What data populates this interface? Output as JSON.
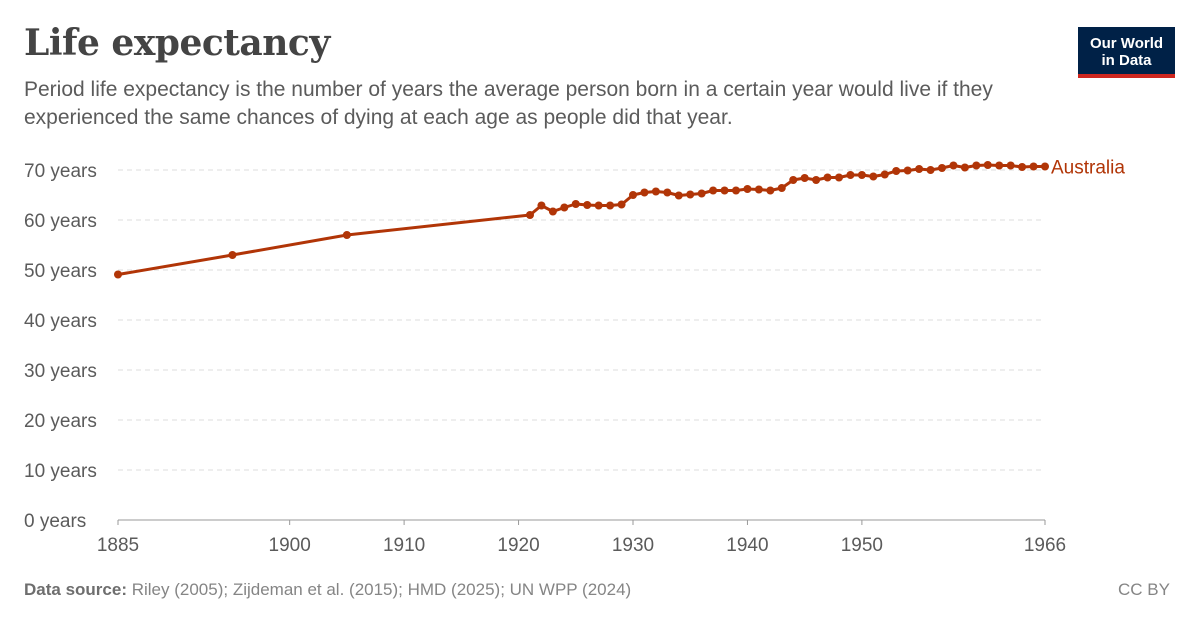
{
  "header": {
    "title": "Life expectancy",
    "subtitle": "Period life expectancy is the number of years the average person born in a certain year would live if they experienced the same chances of dying at each age as people did that year."
  },
  "logo": {
    "line1": "Our World",
    "line2": "in Data"
  },
  "footer": {
    "source_label": "Data source:",
    "source_text": "Riley (2005); Zijdeman et al. (2015); HMD (2025); UN WPP (2024)",
    "license": "CC BY"
  },
  "colors": {
    "series": "#b13507",
    "grid": "#dddddd",
    "logo_bg": "#002147",
    "logo_accent": "#ce261e"
  },
  "chart_data": {
    "type": "line",
    "title": "Life expectancy",
    "xlim": [
      1885,
      1966
    ],
    "ylim": [
      0,
      70
    ],
    "x_ticks": [
      1885,
      1900,
      1910,
      1920,
      1930,
      1940,
      1950,
      1966
    ],
    "y_ticks": [
      0,
      10,
      20,
      30,
      40,
      50,
      60,
      70
    ],
    "y_tick_labels": [
      "0 years",
      "10 years",
      "20 years",
      "30 years",
      "40 years",
      "50 years",
      "60 years",
      "70 years"
    ],
    "grid": "horizontal dashed",
    "legend": "end-of-line label",
    "series": [
      {
        "name": "Australia",
        "points": [
          [
            1885,
            49.1
          ],
          [
            1895,
            53.0
          ],
          [
            1905,
            57.0
          ],
          [
            1921,
            61.0
          ],
          [
            1922,
            62.9
          ],
          [
            1923,
            61.7
          ],
          [
            1924,
            62.5
          ],
          [
            1925,
            63.2
          ],
          [
            1926,
            63.0
          ],
          [
            1927,
            62.9
          ],
          [
            1928,
            62.9
          ],
          [
            1929,
            63.1
          ],
          [
            1930,
            65.0
          ],
          [
            1931,
            65.5
          ],
          [
            1932,
            65.7
          ],
          [
            1933,
            65.5
          ],
          [
            1934,
            64.9
          ],
          [
            1935,
            65.1
          ],
          [
            1936,
            65.3
          ],
          [
            1937,
            65.9
          ],
          [
            1938,
            65.9
          ],
          [
            1939,
            65.9
          ],
          [
            1940,
            66.2
          ],
          [
            1941,
            66.1
          ],
          [
            1942,
            65.9
          ],
          [
            1943,
            66.4
          ],
          [
            1944,
            68.0
          ],
          [
            1945,
            68.4
          ],
          [
            1946,
            68.0
          ],
          [
            1947,
            68.5
          ],
          [
            1948,
            68.5
          ],
          [
            1949,
            69.0
          ],
          [
            1950,
            69.0
          ],
          [
            1951,
            68.7
          ],
          [
            1952,
            69.1
          ],
          [
            1953,
            69.8
          ],
          [
            1954,
            69.9
          ],
          [
            1955,
            70.2
          ],
          [
            1956,
            70.0
          ],
          [
            1957,
            70.4
          ],
          [
            1958,
            70.9
          ],
          [
            1959,
            70.5
          ],
          [
            1960,
            70.9
          ],
          [
            1961,
            71.0
          ],
          [
            1962,
            70.9
          ],
          [
            1963,
            70.9
          ],
          [
            1964,
            70.6
          ],
          [
            1965,
            70.7
          ],
          [
            1966,
            70.7
          ]
        ]
      }
    ]
  }
}
